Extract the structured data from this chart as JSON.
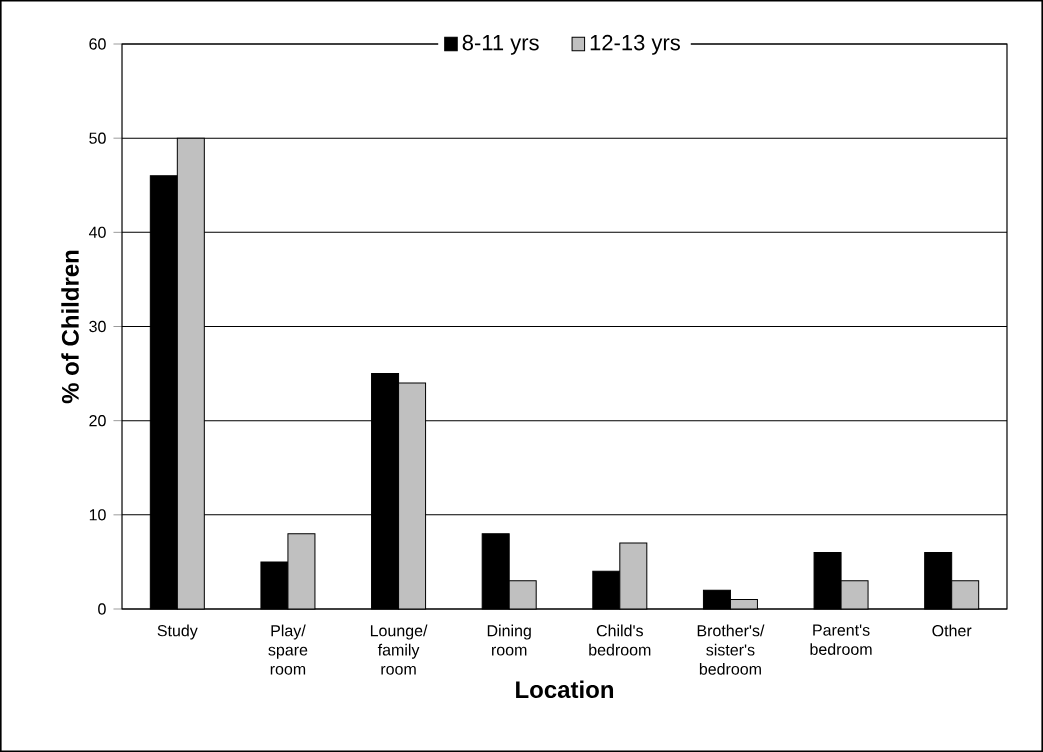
{
  "chart_data": {
    "type": "bar",
    "xlabel": "Location",
    "ylabel": "% of Children",
    "categories": [
      "Study",
      "Play/ spare room",
      "Lounge/ family room",
      "Dining room",
      "Child's bedroom",
      "Brother's/ sister's bedroom",
      "Parent's bedroom",
      "Other"
    ],
    "series": [
      {
        "name": "8-11 yrs",
        "color": "#000000",
        "values": [
          46,
          5,
          25,
          8,
          4,
          2,
          6,
          6
        ]
      },
      {
        "name": "12-13 yrs",
        "color": "#c0c0c0",
        "values": [
          50,
          8,
          24,
          3,
          7,
          1,
          3,
          3
        ]
      }
    ],
    "ylim": [
      0,
      60
    ],
    "yticks": [
      0,
      10,
      20,
      30,
      40,
      50,
      60
    ],
    "grid": "y",
    "legend": "top"
  }
}
